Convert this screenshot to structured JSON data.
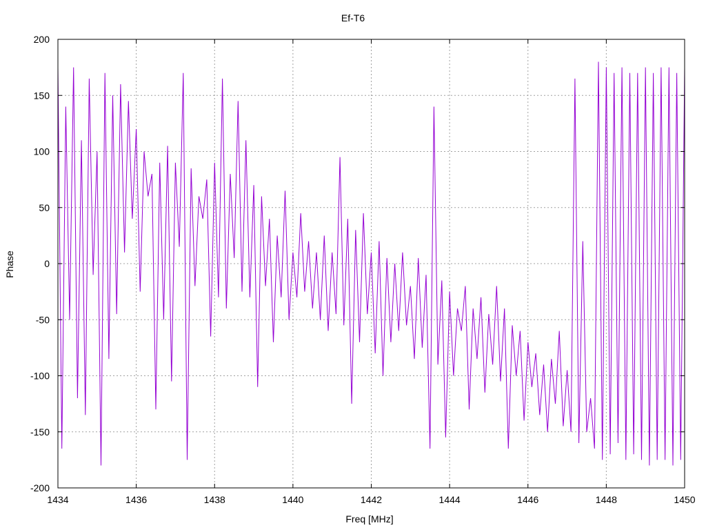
{
  "chart_data": {
    "type": "line",
    "title": "Ef-T6",
    "xlabel": "Freq [MHz]",
    "ylabel": "Phase",
    "xlim": [
      1434,
      1450
    ],
    "ylim": [
      -200,
      200
    ],
    "xticks": [
      1434,
      1436,
      1438,
      1440,
      1442,
      1444,
      1446,
      1448,
      1450
    ],
    "yticks": [
      -200,
      -150,
      -100,
      -50,
      0,
      50,
      100,
      150,
      200
    ],
    "grid": true,
    "line_color": "#9400d3",
    "series": [
      {
        "x": [
          1434.0,
          1434.1,
          1434.2,
          1434.3,
          1434.4,
          1434.5,
          1434.6,
          1434.7,
          1434.8,
          1434.9,
          1435.0,
          1435.1,
          1435.2,
          1435.3,
          1435.4,
          1435.5,
          1435.6,
          1435.7,
          1435.8,
          1435.9,
          1436.0,
          1436.1,
          1436.2,
          1436.3,
          1436.4,
          1436.5,
          1436.6,
          1436.7,
          1436.8,
          1436.9,
          1437.0,
          1437.1,
          1437.2,
          1437.3,
          1437.4,
          1437.5,
          1437.6,
          1437.7,
          1437.8,
          1437.9,
          1438.0,
          1438.1,
          1438.2,
          1438.3,
          1438.4,
          1438.5,
          1438.6,
          1438.7,
          1438.8,
          1438.9,
          1439.0,
          1439.1,
          1439.2,
          1439.3,
          1439.4,
          1439.5,
          1439.6,
          1439.7,
          1439.8,
          1439.9,
          1440.0,
          1440.1,
          1440.2,
          1440.3,
          1440.4,
          1440.5,
          1440.6,
          1440.7,
          1440.8,
          1440.9,
          1441.0,
          1441.1,
          1441.2,
          1441.3,
          1441.4,
          1441.5,
          1441.6,
          1441.7,
          1441.8,
          1441.9,
          1442.0,
          1442.1,
          1442.2,
          1442.3,
          1442.4,
          1442.5,
          1442.6,
          1442.7,
          1442.8,
          1442.9,
          1443.0,
          1443.1,
          1443.2,
          1443.3,
          1443.4,
          1443.5,
          1443.6,
          1443.7,
          1443.8,
          1443.9,
          1444.0,
          1444.1,
          1444.2,
          1444.3,
          1444.4,
          1444.5,
          1444.6,
          1444.7,
          1444.8,
          1444.9,
          1445.0,
          1445.1,
          1445.2,
          1445.3,
          1445.4,
          1445.5,
          1445.6,
          1445.7,
          1445.8,
          1445.9,
          1446.0,
          1446.1,
          1446.2,
          1446.3,
          1446.4,
          1446.5,
          1446.6,
          1446.7,
          1446.8,
          1446.9,
          1447.0,
          1447.1,
          1447.2,
          1447.3,
          1447.4,
          1447.5,
          1447.6,
          1447.7,
          1447.8,
          1447.9,
          1448.0,
          1448.1,
          1448.2,
          1448.3,
          1448.4,
          1448.5,
          1448.6,
          1448.7,
          1448.8,
          1448.9,
          1449.0,
          1449.1,
          1449.2,
          1449.3,
          1449.4,
          1449.5,
          1449.6,
          1449.7,
          1449.8,
          1449.9,
          1450.0
        ],
        "y": [
          175,
          -165,
          140,
          -50,
          175,
          -120,
          110,
          -135,
          165,
          -10,
          100,
          -180,
          170,
          -85,
          150,
          -45,
          160,
          10,
          145,
          40,
          120,
          -25,
          100,
          60,
          80,
          -130,
          90,
          -50,
          105,
          -105,
          90,
          15,
          170,
          -175,
          85,
          -20,
          60,
          40,
          75,
          -65,
          90,
          -30,
          165,
          -40,
          80,
          5,
          145,
          -25,
          110,
          -30,
          70,
          -110,
          60,
          -20,
          40,
          -70,
          25,
          -30,
          65,
          -50,
          10,
          -30,
          45,
          -25,
          20,
          -40,
          10,
          -50,
          25,
          -60,
          10,
          -45,
          95,
          -55,
          40,
          -125,
          30,
          -70,
          45,
          -45,
          10,
          -80,
          20,
          -100,
          5,
          -70,
          0,
          -60,
          10,
          -55,
          -20,
          -85,
          5,
          -75,
          -10,
          -165,
          140,
          -90,
          -15,
          -155,
          -25,
          -100,
          -40,
          -60,
          -20,
          -130,
          -40,
          -85,
          -30,
          -115,
          -45,
          -90,
          -20,
          -105,
          -40,
          -165,
          -55,
          -100,
          -60,
          -140,
          -70,
          -110,
          -80,
          -135,
          -90,
          -150,
          -85,
          -125,
          -60,
          -145,
          -95,
          -150,
          165,
          -160,
          20,
          -150,
          -120,
          -165,
          180,
          -175,
          175,
          -170,
          170,
          -160,
          175,
          -175,
          170,
          -170,
          170,
          -175,
          175,
          -180,
          170,
          -175,
          175,
          -175,
          175,
          -180,
          170,
          -175,
          175
        ]
      }
    ]
  }
}
